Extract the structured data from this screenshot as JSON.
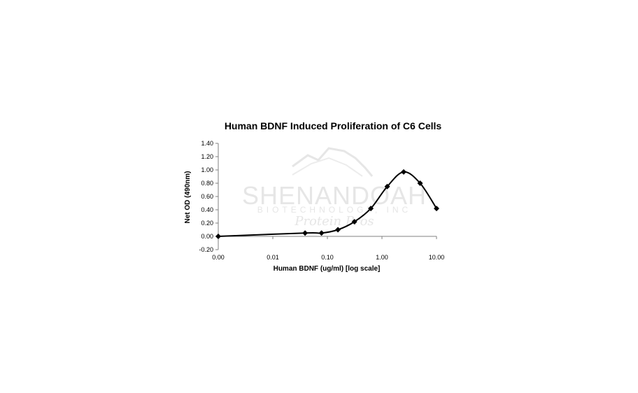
{
  "chart_data": {
    "type": "line",
    "title": "Human BDNF Induced Proliferation of C6 Cells",
    "xlabel": "Human BDNF (ug/ml) [log scale]",
    "ylabel": "Net OD (490nm)",
    "x_scale": "log",
    "x_tick_labels": [
      "0.00",
      "0.01",
      "0.10",
      "1.00",
      "10.00"
    ],
    "y_tick_labels": [
      "-0.20",
      "0.00",
      "0.20",
      "0.40",
      "0.60",
      "0.80",
      "1.00",
      "1.20",
      "1.40"
    ],
    "xlim": [
      0.001,
      10
    ],
    "ylim": [
      -0.2,
      1.4
    ],
    "grid": false,
    "legend": "none",
    "marker": "diamond",
    "line_style": "smooth",
    "series": [
      {
        "x": [
          0.001,
          0.039,
          0.078,
          0.156,
          0.3125,
          0.625,
          1.25,
          2.5,
          5.0,
          10.0
        ],
        "y": [
          0.0,
          0.05,
          0.05,
          0.1,
          0.22,
          0.42,
          0.75,
          0.97,
          0.8,
          0.42
        ]
      }
    ],
    "colors": {
      "line": "#000000",
      "marker": "#000000",
      "axis": "#808080",
      "watermark": "#e6e6e6"
    }
  },
  "watermark": {
    "logo": "SHENANDOAH",
    "sub": "BIOTECHNOLOGY, INC",
    "script": "Protein Pros"
  }
}
